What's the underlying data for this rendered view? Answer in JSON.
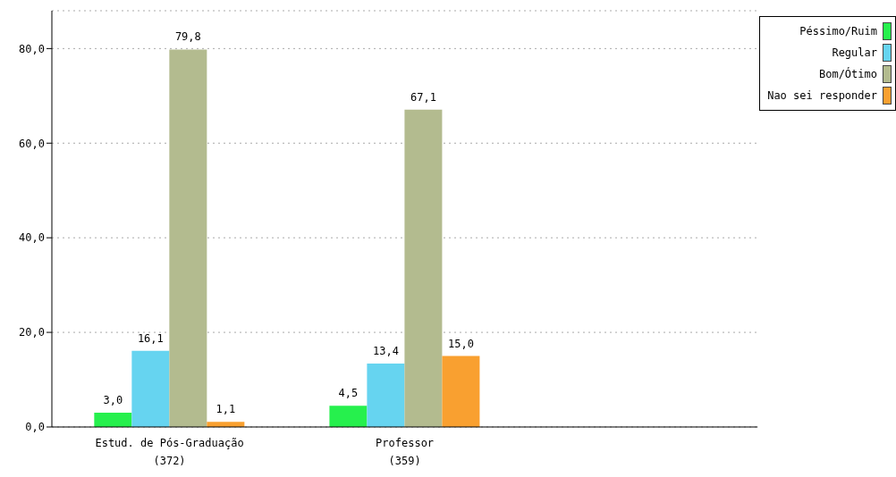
{
  "chart_data": {
    "type": "bar",
    "categories": [
      "Estud. de Pós-Graduação\n(372)",
      "Professor\n(359)",
      null
    ],
    "series": [
      {
        "name": "Péssimo/Ruim",
        "color": "#26f04d",
        "values": [
          3.0,
          4.5,
          null
        ],
        "value_labels": [
          "3,0",
          "4,5",
          null
        ]
      },
      {
        "name": "Regular",
        "color": "#66d4f0",
        "values": [
          16.1,
          13.4,
          null
        ],
        "value_labels": [
          "16,1",
          "13,4",
          null
        ]
      },
      {
        "name": "Bom/Ótimo",
        "color": "#b3bb8f",
        "values": [
          79.8,
          67.1,
          null
        ],
        "value_labels": [
          "79,8",
          "67,1",
          null
        ]
      },
      {
        "name": "Nao sei responder",
        "color": "#f9a030",
        "values": [
          1.1,
          15.0,
          null
        ],
        "value_labels": [
          "1,1",
          "15,0",
          null
        ]
      }
    ],
    "ylim": [
      0,
      88
    ],
    "yticks": [
      {
        "value": 0,
        "label": "0,0"
      },
      {
        "value": 20,
        "label": "20,0"
      },
      {
        "value": 40,
        "label": "40,0"
      },
      {
        "value": 60,
        "label": "60,0"
      },
      {
        "value": 80,
        "label": "80,0"
      }
    ],
    "grid": "y",
    "legend": "top right"
  }
}
